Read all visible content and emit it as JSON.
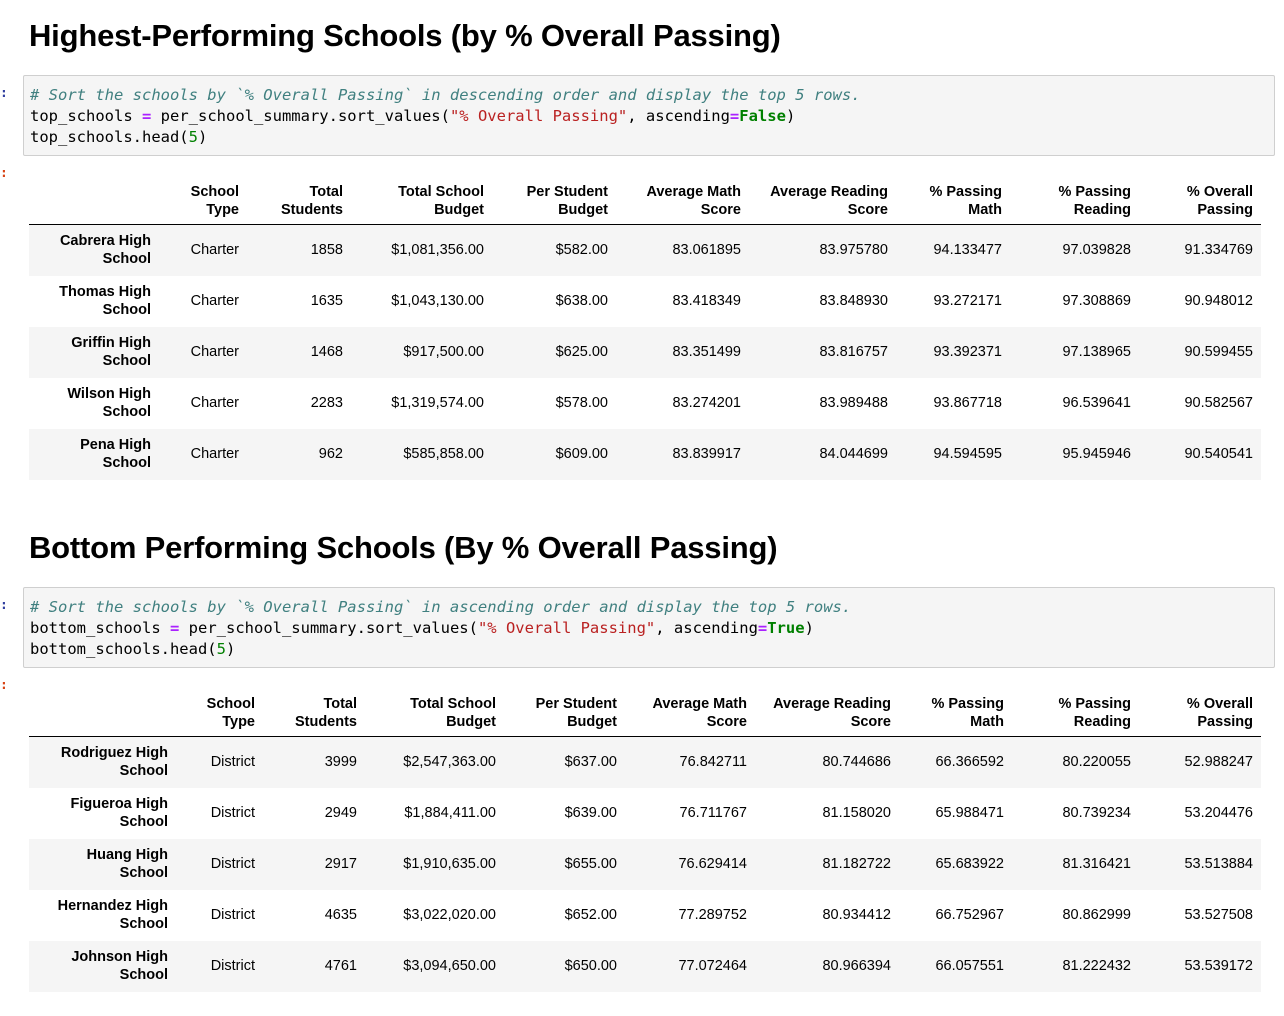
{
  "top": {
    "heading": "Highest-Performing Schools (by % Overall Passing)",
    "in_prompt": ":",
    "out_prompt": ":",
    "code": {
      "comment": "# Sort the schools by `% Overall Passing` in descending order and display the top 5 rows.",
      "l2_a": "top_schools ",
      "l2_op": "=",
      "l2_b": " per_school_summary.sort_values(",
      "l2_str": "\"% Overall Passing\"",
      "l2_c": ", ascending",
      "l2_op2": "=",
      "l2_kw": "False",
      "l2_d": ")",
      "l3_a": "top_schools.head(",
      "l3_num": "5",
      "l3_b": ")"
    },
    "columns": [
      {
        "line1": "School",
        "line2": "Type"
      },
      {
        "line1": "Total",
        "line2": "Students"
      },
      {
        "line1": "Total School",
        "line2": "Budget"
      },
      {
        "line1": "Per Student",
        "line2": "Budget"
      },
      {
        "line1": "Average Math",
        "line2": "Score"
      },
      {
        "line1": "Average Reading",
        "line2": "Score"
      },
      {
        "line1": "% Passing",
        "line2": "Math"
      },
      {
        "line1": "% Passing",
        "line2": "Reading"
      },
      {
        "line1": "% Overall",
        "line2": "Passing"
      }
    ],
    "rows": [
      {
        "name_1": "Cabrera High",
        "name_2": "School",
        "cells": [
          "Charter",
          "1858",
          "$1,081,356.00",
          "$582.00",
          "83.061895",
          "83.975780",
          "94.133477",
          "97.039828",
          "91.334769"
        ]
      },
      {
        "name_1": "Thomas High",
        "name_2": "School",
        "cells": [
          "Charter",
          "1635",
          "$1,043,130.00",
          "$638.00",
          "83.418349",
          "83.848930",
          "93.272171",
          "97.308869",
          "90.948012"
        ]
      },
      {
        "name_1": "Griffin High",
        "name_2": "School",
        "cells": [
          "Charter",
          "1468",
          "$917,500.00",
          "$625.00",
          "83.351499",
          "83.816757",
          "93.392371",
          "97.138965",
          "90.599455"
        ]
      },
      {
        "name_1": "Wilson High",
        "name_2": "School",
        "cells": [
          "Charter",
          "2283",
          "$1,319,574.00",
          "$578.00",
          "83.274201",
          "83.989488",
          "93.867718",
          "96.539641",
          "90.582567"
        ]
      },
      {
        "name_1": "Pena High",
        "name_2": "School",
        "cells": [
          "Charter",
          "962",
          "$585,858.00",
          "$609.00",
          "83.839917",
          "84.044699",
          "94.594595",
          "95.945946",
          "90.540541"
        ]
      }
    ]
  },
  "bottom": {
    "heading": "Bottom Performing Schools (By % Overall Passing)",
    "in_prompt": ":",
    "out_prompt": ":",
    "code": {
      "comment": "# Sort the schools by `% Overall Passing` in ascending order and display the top 5 rows.",
      "l2_a": "bottom_schools ",
      "l2_op": "=",
      "l2_b": " per_school_summary.sort_values(",
      "l2_str": "\"% Overall Passing\"",
      "l2_c": ", ascending",
      "l2_op2": "=",
      "l2_kw": "True",
      "l2_d": ")",
      "l3_a": "bottom_schools.head(",
      "l3_num": "5",
      "l3_b": ")"
    },
    "columns": [
      {
        "line1": "School",
        "line2": "Type"
      },
      {
        "line1": "Total",
        "line2": "Students"
      },
      {
        "line1": "Total School",
        "line2": "Budget"
      },
      {
        "line1": "Per Student",
        "line2": "Budget"
      },
      {
        "line1": "Average Math",
        "line2": "Score"
      },
      {
        "line1": "Average Reading",
        "line2": "Score"
      },
      {
        "line1": "% Passing",
        "line2": "Math"
      },
      {
        "line1": "% Passing",
        "line2": "Reading"
      },
      {
        "line1": "% Overall",
        "line2": "Passing"
      }
    ],
    "rows": [
      {
        "name_1": "Rodriguez High",
        "name_2": "School",
        "cells": [
          "District",
          "3999",
          "$2,547,363.00",
          "$637.00",
          "76.842711",
          "80.744686",
          "66.366592",
          "80.220055",
          "52.988247"
        ]
      },
      {
        "name_1": "Figueroa High",
        "name_2": "School",
        "cells": [
          "District",
          "2949",
          "$1,884,411.00",
          "$639.00",
          "76.711767",
          "81.158020",
          "65.988471",
          "80.739234",
          "53.204476"
        ]
      },
      {
        "name_1": "Huang High",
        "name_2": "School",
        "cells": [
          "District",
          "2917",
          "$1,910,635.00",
          "$655.00",
          "76.629414",
          "81.182722",
          "65.683922",
          "81.316421",
          "53.513884"
        ]
      },
      {
        "name_1": "Hernandez High",
        "name_2": "School",
        "cells": [
          "District",
          "4635",
          "$3,022,020.00",
          "$652.00",
          "77.289752",
          "80.934412",
          "66.752967",
          "80.862999",
          "53.527508"
        ]
      },
      {
        "name_1": "Johnson High",
        "name_2": "School",
        "cells": [
          "District",
          "4761",
          "$3,094,650.00",
          "$650.00",
          "77.072464",
          "80.966394",
          "66.057551",
          "81.222432",
          "53.539172"
        ]
      }
    ]
  }
}
